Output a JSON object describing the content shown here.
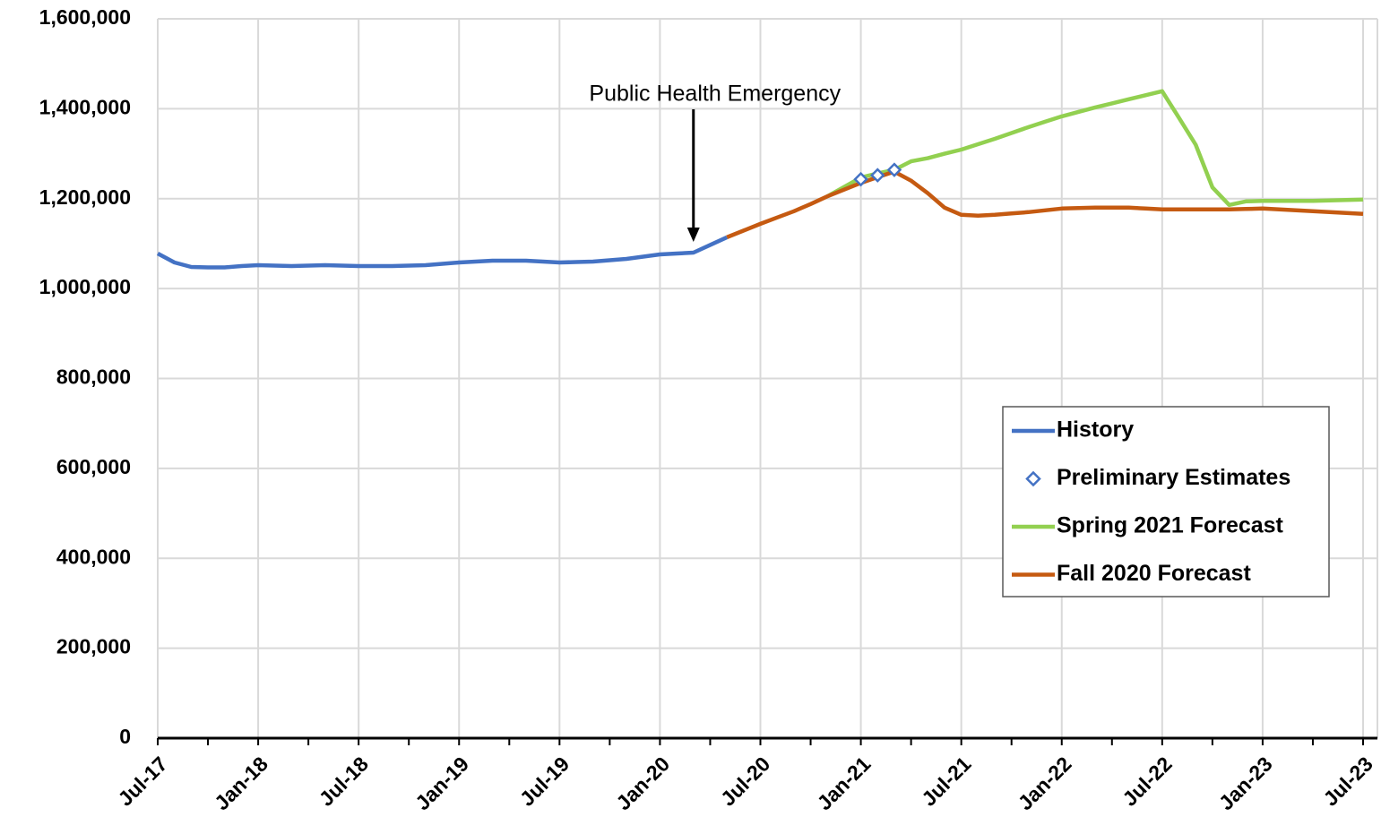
{
  "chart_data": {
    "type": "line",
    "categories": [
      "Jul-17",
      null,
      null,
      null,
      null,
      null,
      "Jan-18",
      null,
      null,
      null,
      null,
      null,
      "Jul-18",
      null,
      null,
      null,
      null,
      null,
      "Jan-19",
      null,
      null,
      null,
      null,
      null,
      "Jul-19",
      null,
      null,
      null,
      null,
      null,
      "Jan-20",
      null,
      null,
      null,
      null,
      null,
      "Jul-20",
      null,
      null,
      null,
      null,
      null,
      "Jan-21",
      null,
      null,
      null,
      null,
      null,
      "Jul-21",
      null,
      null,
      null,
      null,
      null,
      "Jan-22",
      null,
      null,
      null,
      null,
      null,
      "Jul-22",
      null,
      null,
      null,
      null,
      null,
      "Jan-23",
      null,
      null,
      null,
      null,
      null,
      "Jul-23"
    ],
    "series": [
      {
        "name": "History",
        "color": "#4472c4",
        "line": true,
        "values": [
          1078000,
          1058000,
          1048000,
          1047000,
          1047000,
          1050000,
          1052000,
          1051000,
          1050000,
          1051000,
          1052000,
          1051000,
          1050000,
          1050000,
          1050000,
          1051000,
          1052000,
          1055000,
          1058000,
          1060000,
          1062000,
          1062000,
          1062000,
          1060000,
          1058000,
          1059000,
          1060000,
          1063000,
          1066000,
          1071000,
          1076000,
          1078000,
          1080000,
          1097000,
          1114000,
          null,
          null,
          null,
          null,
          null,
          null,
          null,
          null,
          null,
          null,
          null,
          null,
          null,
          null,
          null,
          null,
          null,
          null,
          null,
          null,
          null,
          null,
          null,
          null,
          null,
          null,
          null,
          null,
          null,
          null,
          null,
          null,
          null,
          null,
          null,
          null,
          null,
          null
        ]
      },
      {
        "name": "Preliminary Estimates",
        "color": "#4472c4",
        "line": false,
        "marker": "diamond",
        "values": [
          null,
          null,
          null,
          null,
          null,
          null,
          null,
          null,
          null,
          null,
          null,
          null,
          null,
          null,
          null,
          null,
          null,
          null,
          null,
          null,
          null,
          null,
          null,
          null,
          null,
          null,
          null,
          null,
          null,
          null,
          null,
          null,
          null,
          null,
          null,
          null,
          null,
          null,
          null,
          null,
          null,
          null,
          1243000,
          1252000,
          1264000,
          null,
          null,
          null,
          null,
          null,
          null,
          null,
          null,
          null,
          null,
          null,
          null,
          null,
          null,
          null,
          null,
          null,
          null,
          null,
          null,
          null,
          null,
          null,
          null,
          null,
          null,
          null,
          null
        ]
      },
      {
        "name": "Spring 2021 Forecast",
        "color": "#92d050",
        "line": true,
        "values": [
          null,
          null,
          null,
          null,
          null,
          null,
          null,
          null,
          null,
          null,
          null,
          null,
          null,
          null,
          null,
          null,
          null,
          null,
          null,
          null,
          null,
          null,
          null,
          null,
          null,
          null,
          null,
          null,
          null,
          null,
          null,
          null,
          null,
          null,
          null,
          null,
          null,
          null,
          null,
          null,
          1205000,
          1226000,
          1247000,
          1256000,
          1264000,
          1283000,
          1290000,
          1300000,
          1309000,
          1321000,
          1333000,
          1346000,
          1359000,
          1371000,
          1383000,
          1393000,
          1403000,
          1412000,
          1421000,
          1430000,
          1439000,
          1380000,
          1320000,
          1225000,
          1186000,
          1194000,
          1195000,
          1195000,
          1195000,
          1195000,
          1196000,
          1197000,
          1198000
        ]
      },
      {
        "name": "Fall 2020 Forecast",
        "color": "#c55a11",
        "line": true,
        "values": [
          null,
          null,
          null,
          null,
          null,
          null,
          null,
          null,
          null,
          null,
          null,
          null,
          null,
          null,
          null,
          null,
          null,
          null,
          null,
          null,
          null,
          null,
          null,
          null,
          null,
          null,
          null,
          null,
          null,
          null,
          null,
          null,
          null,
          null,
          1114000,
          1129000,
          1144000,
          1158000,
          1172000,
          1188000,
          1205000,
          1220000,
          1235000,
          1248000,
          1260000,
          1240000,
          1212000,
          1180000,
          1164000,
          1162000,
          1164000,
          1167000,
          1170000,
          1174000,
          1178000,
          1179000,
          1180000,
          1180000,
          1180000,
          1178000,
          1176000,
          1176000,
          1176000,
          1176000,
          1176000,
          1177000,
          1178000,
          1176000,
          1174000,
          1172000,
          1170000,
          1168000,
          1166000
        ]
      }
    ],
    "ylim": [
      0,
      1600000
    ],
    "yticks": [
      0,
      {
        "value": 200000,
        "label": "200,000"
      },
      {
        "value": 400000,
        "label": "400,000"
      },
      {
        "value": 600000,
        "label": "600,000"
      },
      {
        "value": 800000,
        "label": "800,000"
      },
      {
        "value": 1000000,
        "label": "1,000,000"
      },
      {
        "value": 1200000,
        "label": "1,200,000"
      },
      {
        "value": 1400000,
        "label": "1,400,000"
      },
      {
        "value": 1600000,
        "label": "1,600,000"
      }
    ],
    "grid": true,
    "legend": "right",
    "annotations": [
      {
        "text": "Public Health Emergency",
        "category": 32
      }
    ]
  }
}
